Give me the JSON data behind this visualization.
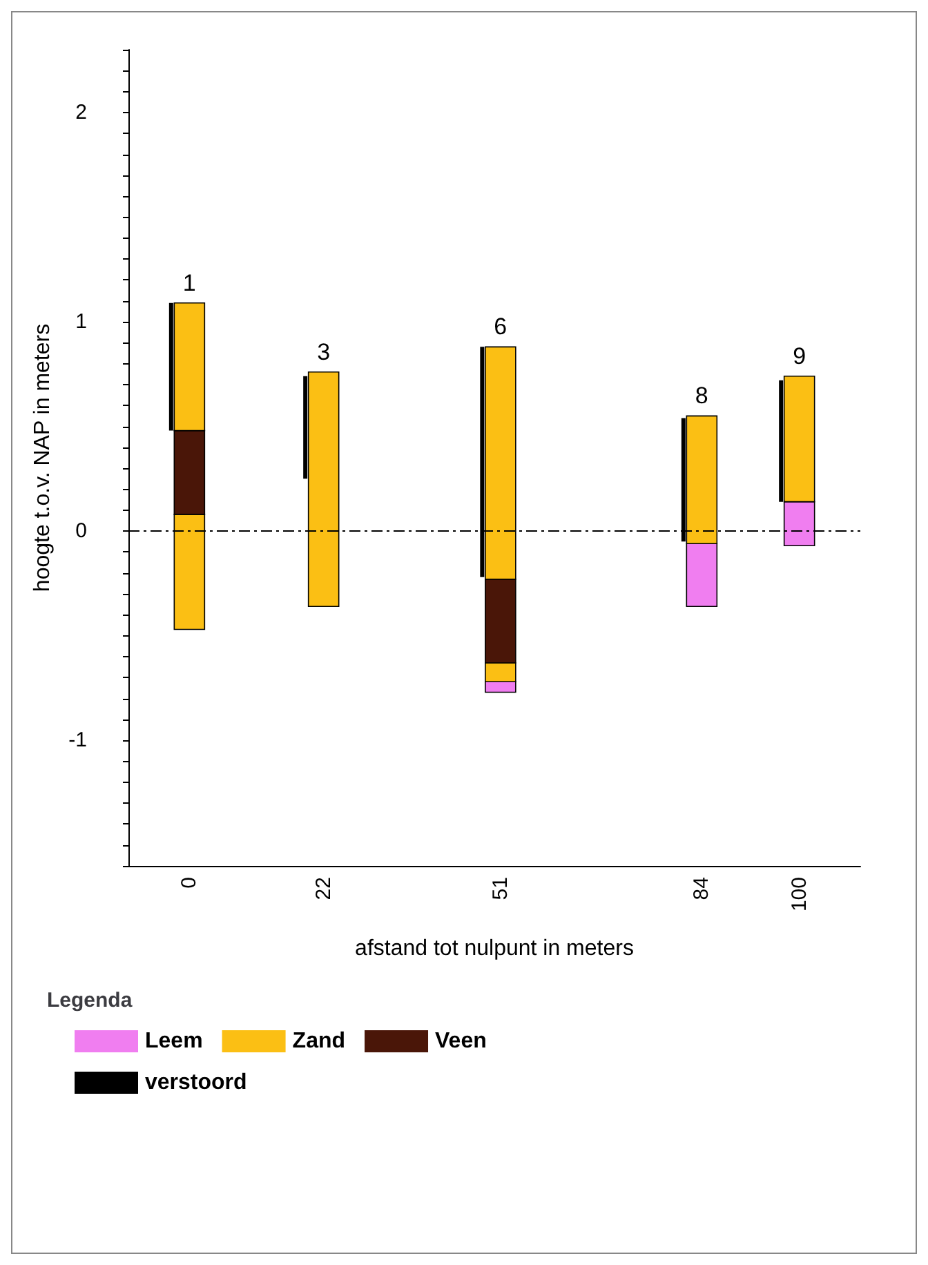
{
  "chart_data": {
    "type": "bar",
    "xlabel": "afstand tot nulpunt in meters",
    "ylabel": "hoogte t.o.v. NAP in meters",
    "legend_title": "Legenda",
    "legend": "bottom",
    "x": [
      0,
      22,
      51,
      84,
      100
    ],
    "xlim": [
      -10,
      110
    ],
    "xticks": [
      0,
      22,
      51,
      84,
      100
    ],
    "ylim": [
      -1.6,
      2.3
    ],
    "yticks": [
      {
        "value": -1.6,
        "label": null
      },
      {
        "value": -1.5,
        "label": null
      },
      {
        "value": -1.4,
        "label": null
      },
      {
        "value": -1.3,
        "label": null
      },
      {
        "value": -1.2,
        "label": null
      },
      {
        "value": -1.1,
        "label": null
      },
      -1,
      {
        "value": -0.9,
        "label": null
      },
      {
        "value": -0.8,
        "label": null
      },
      {
        "value": -0.7,
        "label": null
      },
      {
        "value": -0.6,
        "label": null
      },
      {
        "value": -0.5,
        "label": null
      },
      {
        "value": -0.4,
        "label": null
      },
      {
        "value": -0.3,
        "label": null
      },
      {
        "value": -0.2,
        "label": null
      },
      {
        "value": -0.1,
        "label": null
      },
      0,
      {
        "value": 0.1,
        "label": null
      },
      {
        "value": 0.2,
        "label": null
      },
      {
        "value": 0.3,
        "label": null
      },
      {
        "value": 0.4,
        "label": null
      },
      {
        "value": 0.5,
        "label": null
      },
      {
        "value": 0.6,
        "label": null
      },
      {
        "value": 0.7,
        "label": null
      },
      {
        "value": 0.8,
        "label": null
      },
      {
        "value": 0.9,
        "label": null
      },
      1,
      {
        "value": 1.1,
        "label": null
      },
      {
        "value": 1.2,
        "label": null
      },
      {
        "value": 1.3,
        "label": null
      },
      {
        "value": 1.4,
        "label": null
      },
      {
        "value": 1.5,
        "label": null
      },
      {
        "value": 1.6,
        "label": null
      },
      {
        "value": 1.7,
        "label": null
      },
      {
        "value": 1.8,
        "label": null
      },
      {
        "value": 1.9,
        "label": null
      },
      2,
      {
        "value": 2.1,
        "label": null
      },
      {
        "value": 2.2,
        "label": null
      },
      {
        "value": 2.3,
        "label": null
      }
    ],
    "grid": false,
    "series": [
      {
        "name": "Leem",
        "color": "#f07ef0",
        "base": [
          null,
          null,
          -0.77,
          -0.36,
          -0.07
        ],
        "values": [
          null,
          null,
          0.05,
          0.3,
          0.21
        ]
      },
      {
        "name": "Zand",
        "color": "#fbbf14",
        "base": [
          -0.47,
          -0.36,
          -0.72,
          -0.06,
          0.14
        ],
        "values": [
          0.55,
          1.12,
          0.09,
          0.61,
          0.6
        ]
      },
      {
        "name": "Veen",
        "color": "#4a1608",
        "base": [
          0.08,
          null,
          -0.63,
          null,
          null
        ],
        "values": [
          0.4,
          null,
          0.4,
          null,
          null
        ]
      },
      {
        "color": "#fbbf14",
        "base": [
          0.48,
          null,
          -0.23,
          null,
          null
        ],
        "values": [
          0.61,
          null,
          1.11,
          null,
          null
        ]
      },
      {
        "name": "verstoord",
        "color": "#000000",
        "x": [
          -3,
          19,
          48,
          81,
          97
        ],
        "base": [
          0.48,
          0.25,
          -0.22,
          -0.05,
          0.14
        ],
        "values": [
          0.61,
          0.49,
          1.1,
          0.59,
          0.58
        ]
      }
    ],
    "ref_lines": [
      {
        "axis": "y",
        "value": 0,
        "label": null,
        "line_style": "dashed",
        "color": "#000000"
      }
    ],
    "annotations": [
      "1",
      "3",
      "6",
      "8",
      "9"
    ]
  }
}
